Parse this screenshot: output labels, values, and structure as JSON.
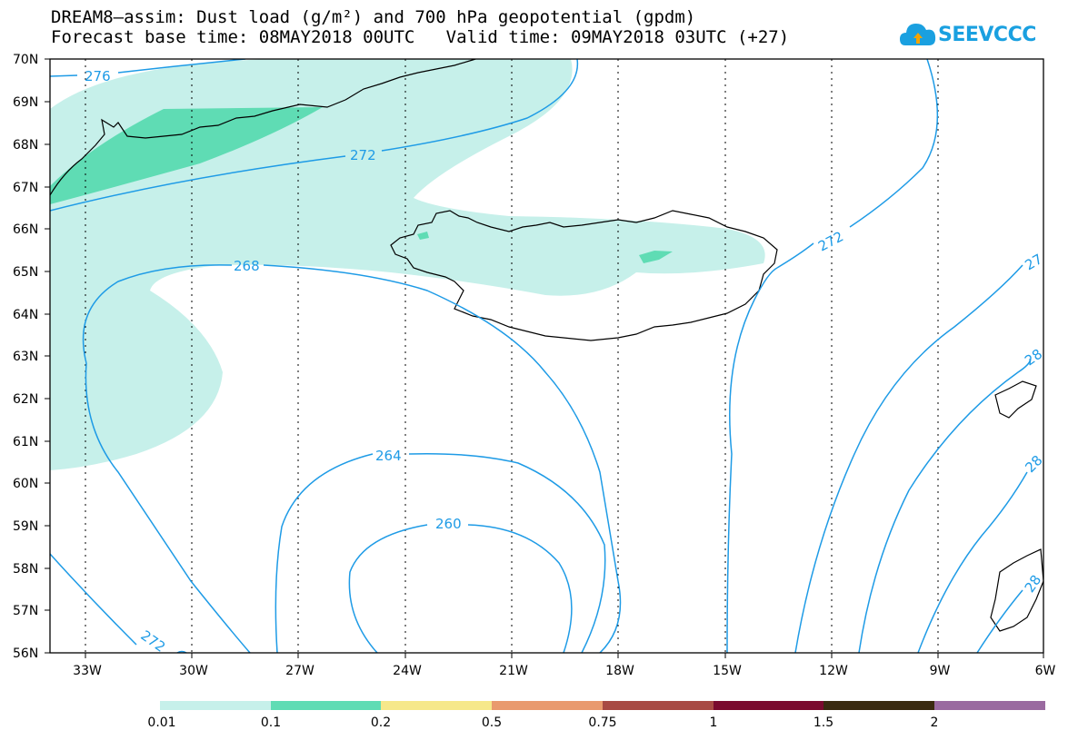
{
  "title_line1": "DREAM8–assim: Dust load (g/m²) and 700 hPa geopotential (gpdm)",
  "title_line2": "Forecast base time: 08MAY2018 00UTC   Valid time: 09MAY2018 03UTC (+27)",
  "logo_text": "SEEVCCC",
  "lat_labels": [
    "70N",
    "69N",
    "68N",
    "67N",
    "66N",
    "65N",
    "64N",
    "63N",
    "62N",
    "61N",
    "60N",
    "59N",
    "58N",
    "57N",
    "56N"
  ],
  "lon_labels": [
    "33W",
    "30W",
    "27W",
    "24W",
    "21W",
    "18W",
    "15W",
    "12W",
    "9W",
    "6W"
  ],
  "contour_labels": [
    "276",
    "272",
    "268",
    "264",
    "260",
    "272",
    "272",
    "27",
    "28",
    "28",
    "28"
  ],
  "colorbar": {
    "labels": [
      "0.01",
      "0.1",
      "0.2",
      "0.5",
      "0.75",
      "1",
      "1.5",
      "2"
    ],
    "colors": [
      "#c6f0ea",
      "#5fdcb4",
      "#f6e88a",
      "#e99a6e",
      "#a84a44",
      "#7a0a2e",
      "#3a2a10",
      "#9a6aa0"
    ]
  },
  "colors": {
    "contour": "#1e9be6",
    "dust_light": "#c6f0ea",
    "dust_mid": "#5fdcb4",
    "coast": "#000000"
  }
}
